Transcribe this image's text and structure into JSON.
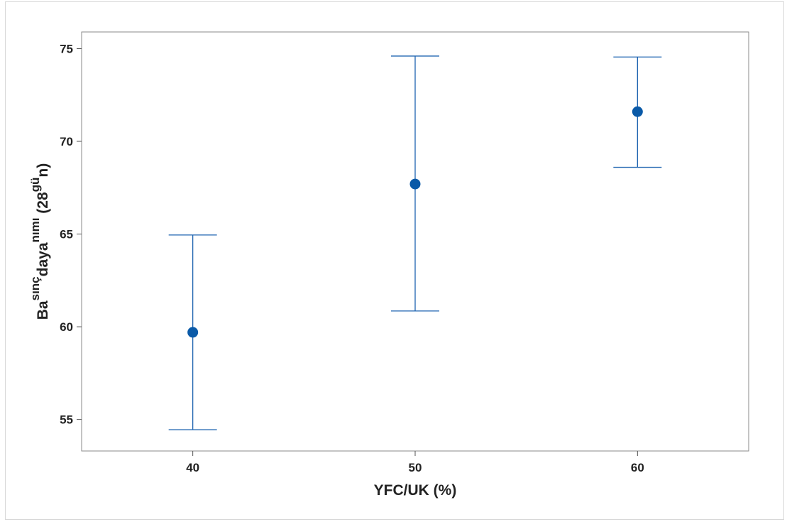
{
  "chart_data": {
    "type": "scatter",
    "subtype": "interval-plot",
    "xlabel": "YFC/UK (%)",
    "ylabel_parts": [
      {
        "text": "Ba",
        "shift": "base"
      },
      {
        "text": "sınç",
        "shift": "super"
      },
      {
        "text": "daya",
        "shift": "base"
      },
      {
        "text": "nımı",
        "shift": "super"
      },
      {
        "text": " (28",
        "shift": "base"
      },
      {
        "text": "gü",
        "shift": "super"
      },
      {
        "text": "n)",
        "shift": "base"
      }
    ],
    "x_categories": [
      "40",
      "50",
      "60"
    ],
    "xlim": [
      35,
      65
    ],
    "ylim": [
      53.3,
      75.9
    ],
    "y_ticks": [
      55,
      60,
      65,
      70,
      75
    ],
    "grid": false,
    "points": [
      {
        "x": 40,
        "mean": 59.7,
        "lower": 54.45,
        "upper": 64.95
      },
      {
        "x": 50,
        "mean": 67.7,
        "lower": 60.85,
        "upper": 74.6
      },
      {
        "x": 60,
        "mean": 71.6,
        "lower": 68.6,
        "upper": 74.55
      }
    ],
    "colors": {
      "marker": "#0a5aa8",
      "error_bar": "#1f64b0",
      "axis": "#555555"
    }
  }
}
